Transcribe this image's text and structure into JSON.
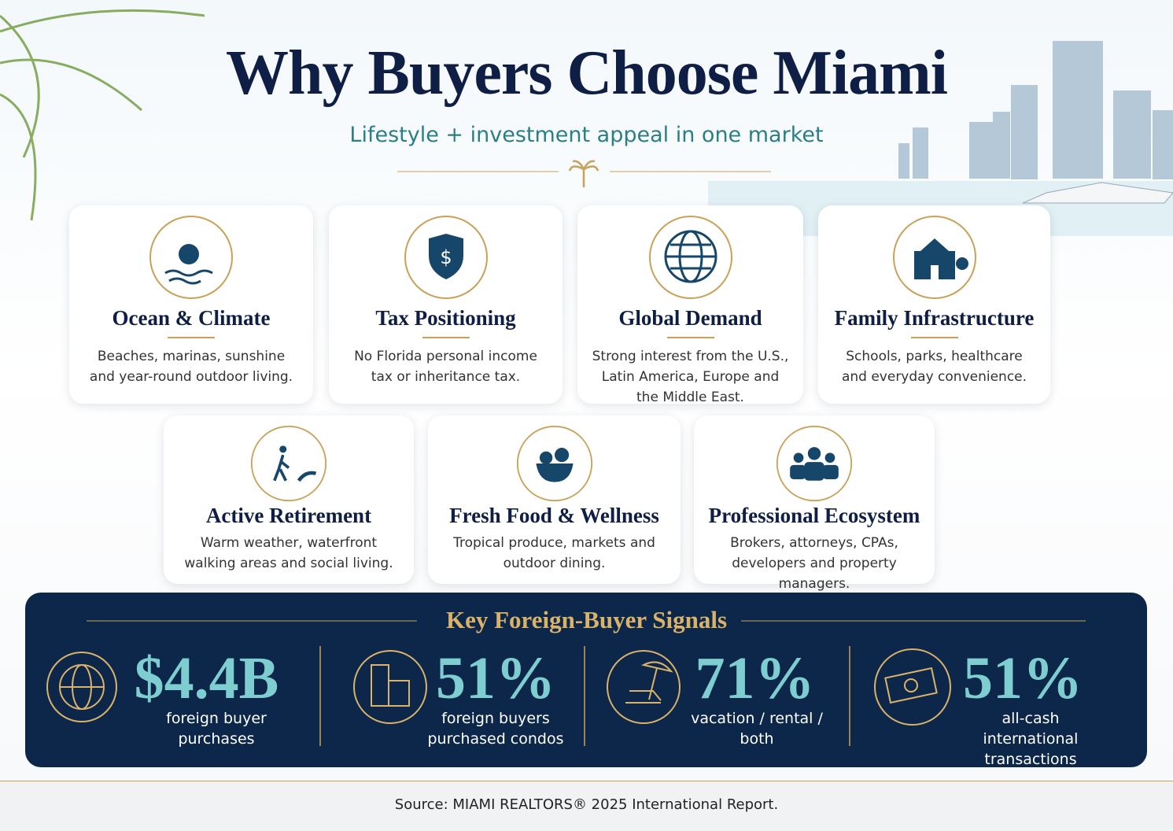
{
  "header": {
    "title": "Why Buyers Choose Miami",
    "subtitle": "Lifestyle + investment appeal in one market"
  },
  "features": [
    {
      "title": "Ocean & Climate",
      "text": "Beaches, marinas, sunshine and year-round outdoor living."
    },
    {
      "title": "Tax Positioning",
      "text": "No Florida personal income tax or inheritance tax."
    },
    {
      "title": "Global Demand",
      "text": "Strong interest from the U.S., Latin America, Europe and the Middle East."
    },
    {
      "title": "Family Infrastructure",
      "text": "Schools, parks, healthcare and everyday convenience."
    },
    {
      "title": "Active Retirement",
      "text": "Warm weather, waterfront walking areas and social living."
    },
    {
      "title": "Fresh Food & Wellness",
      "text": "Tropical produce, markets and outdoor dining."
    },
    {
      "title": "Professional Ecosystem",
      "text": "Brokers, attorneys, CPAs, developers and property managers."
    }
  ],
  "signals": {
    "title": "Key Foreign-Buyer Signals",
    "items": [
      {
        "value": "$4.4B",
        "label": "foreign buyer purchases"
      },
      {
        "value": "51%",
        "label": "foreign buyers purchased condos"
      },
      {
        "value": "71%",
        "label": "vacation / rental / both"
      },
      {
        "value": "51%",
        "label": "all-cash international transactions"
      }
    ]
  },
  "footer": {
    "source": "Source: MIAMI REALTORS® 2025 International Report."
  }
}
